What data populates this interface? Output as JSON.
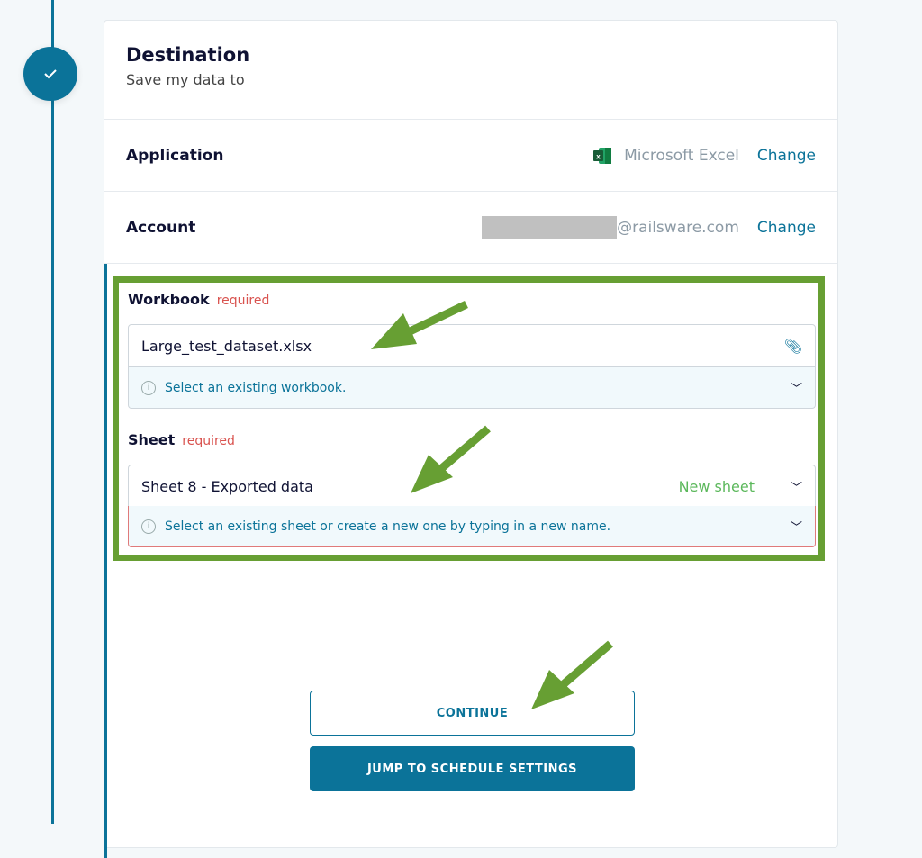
{
  "header": {
    "title": "Destination",
    "subtitle": "Save my data to"
  },
  "application": {
    "label": "Application",
    "value": "Microsoft Excel",
    "icon": "excel-icon",
    "change": "Change"
  },
  "account": {
    "label": "Account",
    "value": "@railsware.com",
    "change": "Change"
  },
  "workbook": {
    "label": "Workbook",
    "required": "required",
    "value": "Large_test_dataset.xlsx",
    "hint": "Select an existing workbook."
  },
  "sheet": {
    "label": "Sheet",
    "required": "required",
    "value": "Sheet 8 - Exported data",
    "badge": "New sheet",
    "hint": "Select an existing sheet or create a new one by typing in a new name."
  },
  "buttons": {
    "continue": "CONTINUE",
    "jump": "JUMP TO SCHEDULE SETTINGS"
  },
  "colors": {
    "accent": "#0b7399",
    "annotation": "#679f33",
    "required": "#d9534f",
    "new_sheet": "#5cb85c"
  }
}
